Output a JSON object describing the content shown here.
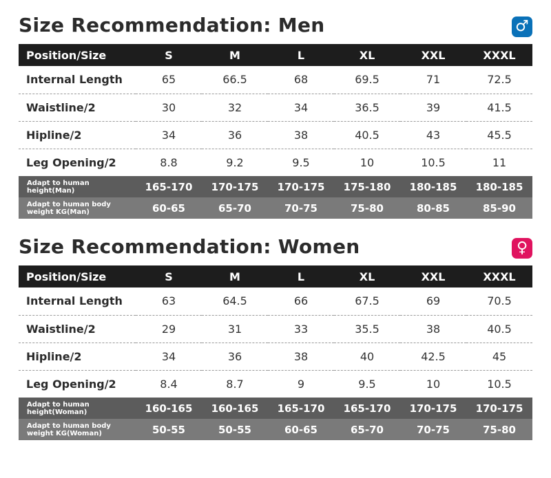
{
  "sizes": [
    "S",
    "M",
    "L",
    "XL",
    "XXL",
    "XXXL"
  ],
  "men": {
    "title": "Size Recommendation: Men",
    "icon": "male-icon",
    "icon_color": "#0a71b8",
    "header_label": "Position/Size",
    "rows": [
      {
        "label": "Internal Length",
        "values": [
          "65",
          "66.5",
          "68",
          "69.5",
          "71",
          "72.5"
        ]
      },
      {
        "label": "Waistline/2",
        "values": [
          "30",
          "32",
          "34",
          "36.5",
          "39",
          "41.5"
        ]
      },
      {
        "label": "Hipline/2",
        "values": [
          "34",
          "36",
          "38",
          "40.5",
          "43",
          "45.5"
        ]
      },
      {
        "label": "Leg Opening/2",
        "values": [
          "8.8",
          "9.2",
          "9.5",
          "10",
          "10.5",
          "11"
        ]
      }
    ],
    "height_row": {
      "label_line1": "Adapt to human",
      "label_line2": "height(Man)",
      "values": [
        "165-170",
        "170-175",
        "170-175",
        "175-180",
        "180-185",
        "180-185"
      ]
    },
    "weight_row": {
      "label_line1": "Adapt to human body",
      "label_line2": "weight KG(Man)",
      "values": [
        "60-65",
        "65-70",
        "70-75",
        "75-80",
        "80-85",
        "85-90"
      ]
    }
  },
  "women": {
    "title": "Size Recommendation: Women",
    "icon": "female-icon",
    "icon_color": "#e0135f",
    "header_label": "Position/Size",
    "rows": [
      {
        "label": "Internal Length",
        "values": [
          "63",
          "64.5",
          "66",
          "67.5",
          "69",
          "70.5"
        ]
      },
      {
        "label": "Waistline/2",
        "values": [
          "29",
          "31",
          "33",
          "35.5",
          "38",
          "40.5"
        ]
      },
      {
        "label": "Hipline/2",
        "values": [
          "34",
          "36",
          "38",
          "40",
          "42.5",
          "45"
        ]
      },
      {
        "label": "Leg Opening/2",
        "values": [
          "8.4",
          "8.7",
          "9",
          "9.5",
          "10",
          "10.5"
        ]
      }
    ],
    "height_row": {
      "label_line1": "Adapt to human",
      "label_line2": "height(Woman)",
      "values": [
        "160-165",
        "160-165",
        "165-170",
        "165-170",
        "170-175",
        "170-175"
      ]
    },
    "weight_row": {
      "label_line1": "Adapt to human body",
      "label_line2": "weight KG(Woman)",
      "values": [
        "50-55",
        "50-55",
        "60-65",
        "65-70",
        "70-75",
        "75-80"
      ]
    }
  }
}
